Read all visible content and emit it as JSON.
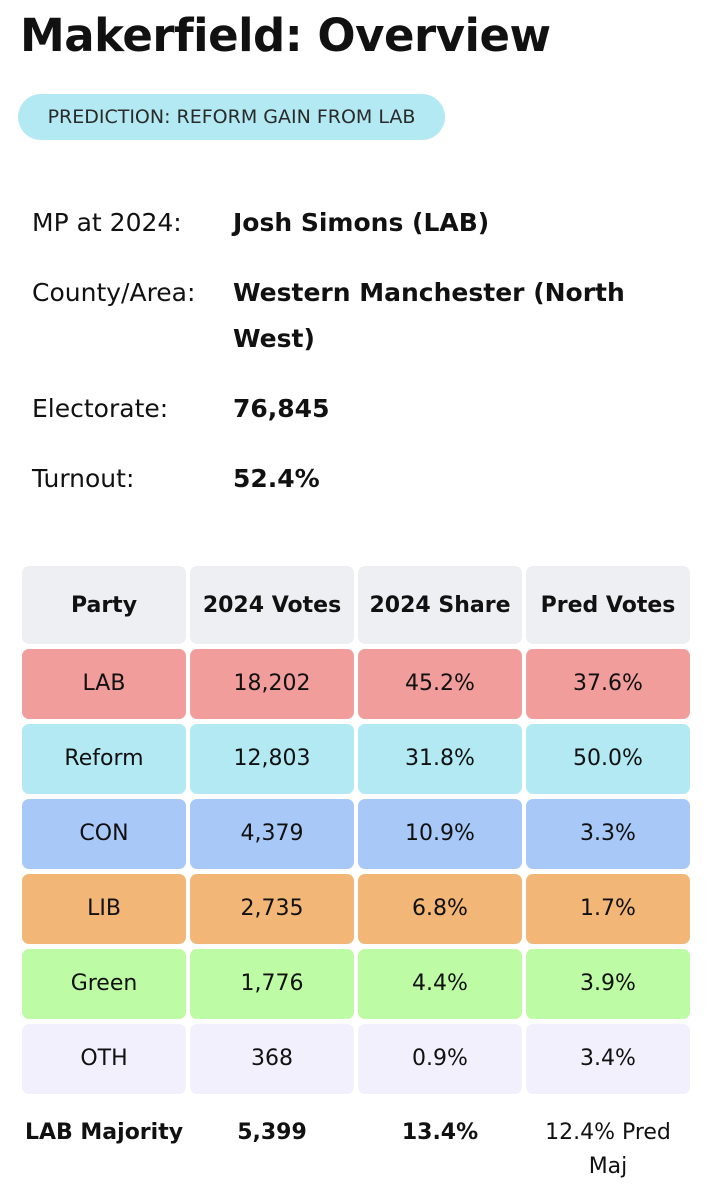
{
  "title": "Makerfield: Overview",
  "prediction_badge": "PREDICTION: REFORM GAIN FROM LAB",
  "info": [
    {
      "label": "MP at 2024:",
      "value": "Josh Simons  (LAB)"
    },
    {
      "label": "County/Area:",
      "value": "Western Manchester (North West)"
    },
    {
      "label": "Electorate:",
      "value": "76,845"
    },
    {
      "label": "Turnout:",
      "value": "52.4%"
    }
  ],
  "table": {
    "headers": [
      "Party",
      "2024 Votes",
      "2024 Share",
      "Pred Votes"
    ],
    "rows": [
      {
        "party": "LAB",
        "votes": "18,202",
        "share": "45.2%",
        "pred": "37.6%",
        "color": "#f09d9b"
      },
      {
        "party": "Reform",
        "votes": "12,803",
        "share": "31.8%",
        "pred": "50.0%",
        "color": "#b2e9f3"
      },
      {
        "party": "CON",
        "votes": "4,379",
        "share": "10.9%",
        "pred": "3.3%",
        "color": "#a8c8f8"
      },
      {
        "party": "LIB",
        "votes": "2,735",
        "share": "6.8%",
        "pred": "1.7%",
        "color": "#f2b677"
      },
      {
        "party": "Green",
        "votes": "1,776",
        "share": "4.4%",
        "pred": "3.9%",
        "color": "#bdfca4"
      },
      {
        "party": "OTH",
        "votes": "368",
        "share": "0.9%",
        "pred": "3.4%",
        "color": "#f2f0fd"
      }
    ],
    "header_color": "#eeeff2",
    "footer": {
      "label": "LAB Majority",
      "votes": "5,399",
      "share": "13.4%",
      "pred": "12.4% Pred Maj"
    }
  }
}
